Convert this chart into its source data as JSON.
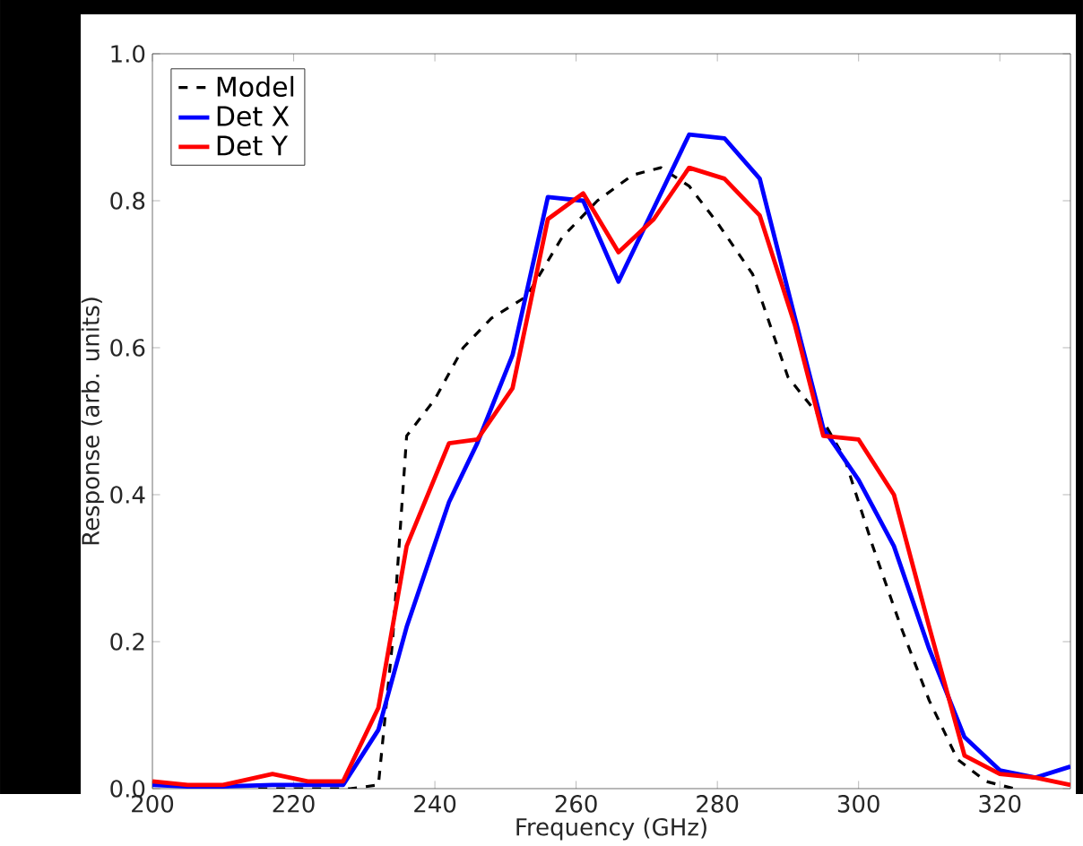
{
  "chart_data": {
    "type": "line",
    "xlabel": "Frequency (GHz)",
    "ylabel": "Response (arb. units)",
    "xlim": [
      200,
      330
    ],
    "ylim": [
      0,
      1
    ],
    "xticks": [
      200,
      220,
      240,
      260,
      280,
      300,
      320
    ],
    "yticks": [
      {
        "value": 0,
        "label": "0.0"
      },
      {
        "value": 0.2,
        "label": "0.2"
      },
      {
        "value": 0.4,
        "label": "0.4"
      },
      {
        "value": 0.6,
        "label": "0.6"
      },
      {
        "value": 0.8,
        "label": "0.8"
      },
      {
        "value": 1,
        "label": "1.0"
      }
    ],
    "legend": "top left",
    "marker": "none",
    "series": [
      {
        "name": "Model",
        "color": "#000000",
        "line_style": "dashed",
        "x": [
          215,
          228,
          232,
          234,
          236,
          240,
          244,
          248,
          253,
          258,
          263,
          268,
          272,
          276,
          280,
          285,
          290,
          295,
          298,
          302,
          306,
          310,
          314,
          318,
          322
        ],
        "values": [
          0,
          0,
          0.005,
          0.2,
          0.48,
          0.53,
          0.6,
          0.64,
          0.67,
          0.75,
          0.8,
          0.835,
          0.845,
          0.82,
          0.77,
          0.7,
          0.56,
          0.5,
          0.45,
          0.33,
          0.22,
          0.12,
          0.04,
          0.01,
          0
        ]
      },
      {
        "name": "Det X",
        "color": "#0000ff",
        "line_style": "solid",
        "x": [
          200,
          205,
          210,
          217,
          222,
          227,
          232,
          236,
          242,
          246,
          251,
          256,
          261,
          266,
          271,
          276,
          281,
          286,
          291,
          295,
          300,
          305,
          310,
          315,
          320,
          325,
          330
        ],
        "values": [
          0.005,
          0.003,
          0.003,
          0.005,
          0.005,
          0.005,
          0.08,
          0.22,
          0.39,
          0.47,
          0.59,
          0.805,
          0.8,
          0.69,
          0.79,
          0.89,
          0.885,
          0.83,
          0.64,
          0.49,
          0.42,
          0.33,
          0.19,
          0.07,
          0.025,
          0.015,
          0.03
        ]
      },
      {
        "name": "Det Y",
        "color": "#ff0000",
        "line_style": "solid",
        "x": [
          200,
          205,
          210,
          217,
          222,
          227,
          232,
          236,
          242,
          246,
          251,
          256,
          261,
          266,
          271,
          276,
          281,
          286,
          291,
          295,
          300,
          305,
          310,
          315,
          320,
          325,
          330
        ],
        "values": [
          0.01,
          0.005,
          0.005,
          0.02,
          0.01,
          0.01,
          0.11,
          0.33,
          0.47,
          0.475,
          0.545,
          0.775,
          0.81,
          0.73,
          0.775,
          0.845,
          0.83,
          0.78,
          0.63,
          0.48,
          0.475,
          0.4,
          0.22,
          0.045,
          0.02,
          0.015,
          0.005
        ]
      }
    ]
  }
}
